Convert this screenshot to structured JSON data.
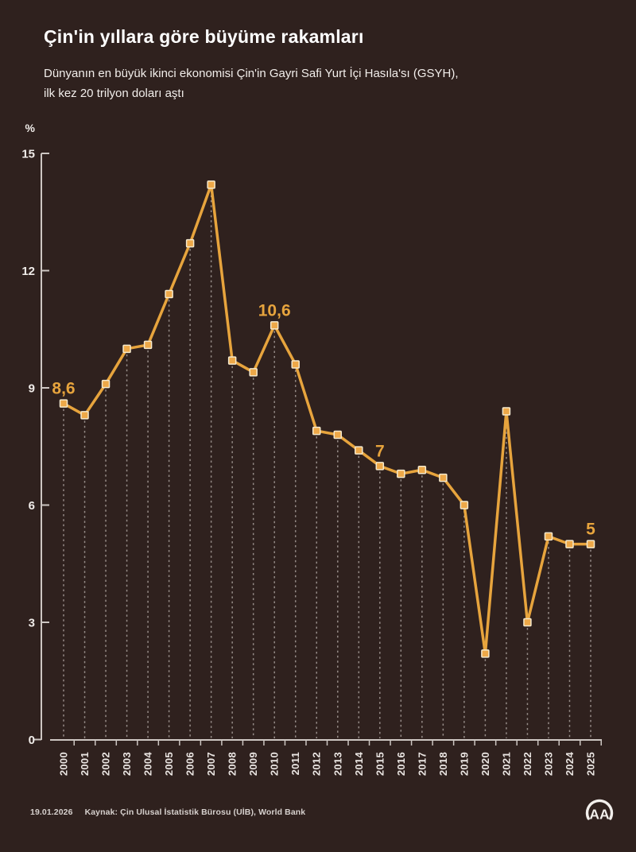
{
  "header": {
    "title": "Çin'in yıllara göre büyüme rakamları",
    "subtitle_line1": "Dünyanın en büyük ikinci ekonomisi Çin'in Gayri Safi Yurt İçi Hasıla'sı (GSYH),",
    "subtitle_line2": "ilk kez 20 trilyon doları aştı"
  },
  "chart_data": {
    "type": "line",
    "title": "Çin'in yıllara göre büyüme rakamları",
    "unit_label": "%",
    "categories": [
      "2000",
      "2001",
      "2002",
      "2003",
      "2004",
      "2005",
      "2006",
      "2007",
      "2008",
      "2009",
      "2010",
      "2011",
      "2012",
      "2013",
      "2014",
      "2015",
      "2016",
      "2017",
      "2018",
      "2019",
      "2020",
      "2021",
      "2022",
      "2023",
      "2024",
      "2025"
    ],
    "values": [
      8.6,
      8.3,
      9.1,
      10.0,
      10.1,
      11.4,
      12.7,
      14.2,
      9.7,
      9.4,
      10.6,
      9.6,
      7.9,
      7.8,
      7.4,
      7.0,
      6.8,
      6.9,
      6.7,
      6.0,
      2.2,
      8.4,
      3.0,
      5.2,
      5.0,
      5.0
    ],
    "value_labels": [
      {
        "index": 0,
        "text": "8,6"
      },
      {
        "index": 10,
        "text": "10,6"
      },
      {
        "index": 15,
        "text": "7"
      },
      {
        "index": 25,
        "text": "5"
      }
    ],
    "y_ticks": [
      0,
      3,
      6,
      9,
      12,
      15
    ],
    "ylim": [
      0,
      15
    ],
    "xlabel": "",
    "ylabel": "%",
    "grid": "dashed vertical droplines per point",
    "legend": "none",
    "colors": {
      "background": "#2f211e",
      "line": "#e7a43d",
      "marker_fill": "#eda848",
      "marker_stroke": "#f5e9cc",
      "value_label": "#e7a43d",
      "axis": "#cdc6c2",
      "dropline": "#958b87",
      "tick_text": "#f0ece9",
      "year_text": "#eae5e2"
    }
  },
  "footer": {
    "date": "19.01.2026",
    "source": "Kaynak: Çin Ulusal İstatistik Bürosu (UİB), World Bank"
  },
  "logo": {
    "name": "aa-agency-logo",
    "text": "AA",
    "color": "#f2efec"
  }
}
